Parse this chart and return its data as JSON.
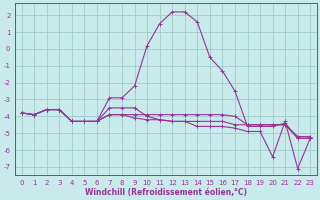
{
  "xlabel": "Windchill (Refroidissement éolien,°C)",
  "bg_color": "#c8eaea",
  "grid_color": "#a0cccc",
  "line_color": "#993399",
  "spine_color": "#993399",
  "xlim": [
    -0.5,
    23.5
  ],
  "ylim": [
    -7.5,
    2.7
  ],
  "yticks": [
    2,
    1,
    0,
    -1,
    -2,
    -3,
    -4,
    -5,
    -6,
    -7
  ],
  "xticks": [
    0,
    1,
    2,
    3,
    4,
    5,
    6,
    7,
    8,
    9,
    10,
    11,
    12,
    13,
    14,
    15,
    16,
    17,
    18,
    19,
    20,
    21,
    22,
    23
  ],
  "series": [
    [
      -3.8,
      -3.9,
      -3.6,
      -3.6,
      -4.3,
      -4.3,
      -4.3,
      -2.9,
      -2.9,
      -2.2,
      0.2,
      1.5,
      2.2,
      2.2,
      1.6,
      -0.5,
      -1.3,
      -2.5,
      -4.6,
      -4.6,
      -4.6,
      -4.4,
      -5.3,
      -5.3
    ],
    [
      -3.8,
      -3.9,
      -3.6,
      -3.6,
      -4.3,
      -4.3,
      -4.3,
      -3.9,
      -3.9,
      -3.9,
      -3.9,
      -3.9,
      -3.9,
      -3.9,
      -3.9,
      -3.9,
      -3.9,
      -4.0,
      -4.5,
      -4.5,
      -4.5,
      -4.5,
      -5.2,
      -5.2
    ],
    [
      -3.8,
      -3.9,
      -3.6,
      -3.6,
      -4.3,
      -4.3,
      -4.3,
      -3.9,
      -3.9,
      -4.1,
      -4.2,
      -4.2,
      -4.3,
      -4.3,
      -4.6,
      -4.6,
      -4.6,
      -4.7,
      -4.9,
      -4.9,
      -6.4,
      -4.3,
      -7.1,
      -5.3
    ],
    [
      -3.8,
      -3.9,
      -3.6,
      -3.6,
      -4.3,
      -4.3,
      -4.3,
      -3.5,
      -3.5,
      -3.5,
      -4.0,
      -4.2,
      -4.3,
      -4.3,
      -4.3,
      -4.3,
      -4.3,
      -4.5,
      -4.5,
      -4.5,
      -4.5,
      -4.5,
      -5.3,
      -5.3
    ]
  ],
  "xlabel_fontsize": 5.5,
  "tick_fontsize": 5.0,
  "linewidth": 0.8,
  "markersize": 2.5
}
